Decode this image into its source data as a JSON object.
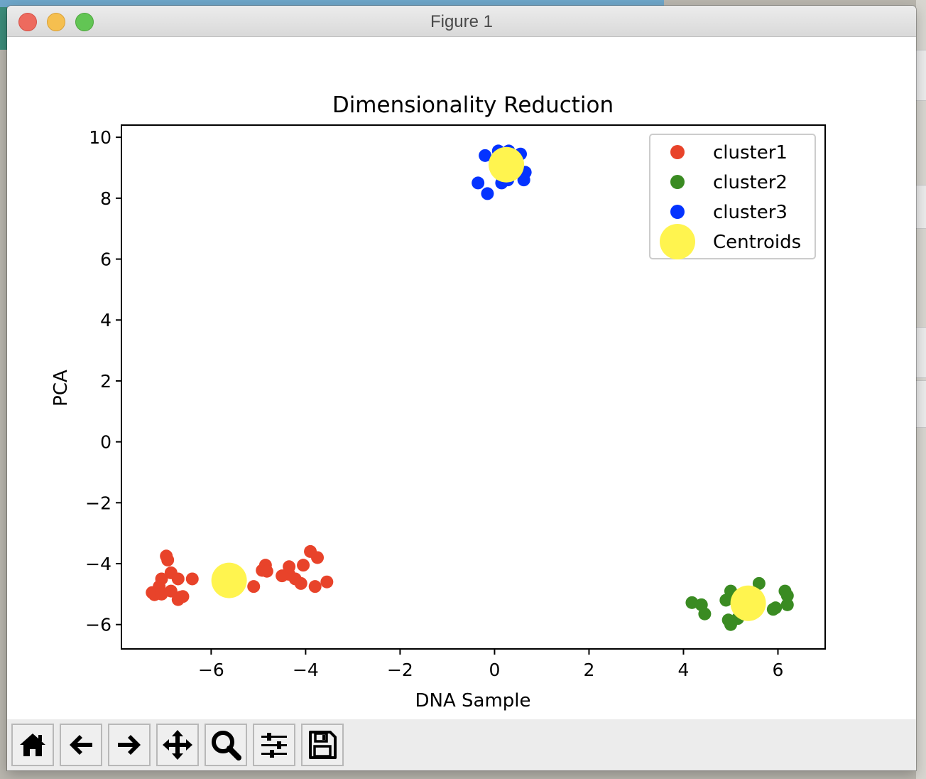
{
  "window": {
    "title": "Figure 1"
  },
  "toolbar": {
    "buttons": [
      {
        "name": "home",
        "icon": "home-icon"
      },
      {
        "name": "back",
        "icon": "arrow-left-icon"
      },
      {
        "name": "forward",
        "icon": "arrow-right-icon"
      },
      {
        "name": "pan",
        "icon": "move-icon"
      },
      {
        "name": "zoom",
        "icon": "search-icon"
      },
      {
        "name": "configure-subplots",
        "icon": "sliders-icon"
      },
      {
        "name": "save",
        "icon": "floppy-disk-icon"
      }
    ]
  },
  "chart_data": {
    "type": "scatter",
    "title": "Dimensionality Reduction",
    "xlabel": "DNA Sample",
    "ylabel": "PCA",
    "xlim": [
      -7.9,
      7.0
    ],
    "ylim": [
      -6.8,
      10.4
    ],
    "xticks": [
      -6,
      -4,
      -2,
      0,
      2,
      4,
      6
    ],
    "yticks": [
      -6,
      -4,
      -2,
      0,
      2,
      4,
      6,
      8,
      10
    ],
    "grid": false,
    "legend_position": "top-right",
    "series": [
      {
        "name": "cluster1",
        "color": "#e8432a",
        "points": [
          [
            -6.95,
            -3.75
          ],
          [
            -6.92,
            -3.88
          ],
          [
            -6.85,
            -4.3
          ],
          [
            -7.05,
            -4.5
          ],
          [
            -6.7,
            -4.5
          ],
          [
            -6.4,
            -4.5
          ],
          [
            -7.1,
            -4.75
          ],
          [
            -7.25,
            -4.95
          ],
          [
            -7.2,
            -5.02
          ],
          [
            -7.05,
            -5.0
          ],
          [
            -6.85,
            -4.9
          ],
          [
            -6.65,
            -5.1
          ],
          [
            -6.7,
            -5.18
          ],
          [
            -6.6,
            -5.08
          ],
          [
            -5.1,
            -4.75
          ],
          [
            -4.92,
            -4.22
          ],
          [
            -4.85,
            -4.05
          ],
          [
            -4.82,
            -4.25
          ],
          [
            -4.5,
            -4.4
          ],
          [
            -4.35,
            -4.35
          ],
          [
            -4.35,
            -4.1
          ],
          [
            -4.22,
            -4.5
          ],
          [
            -4.1,
            -4.65
          ],
          [
            -4.05,
            -4.05
          ],
          [
            -3.9,
            -3.6
          ],
          [
            -3.75,
            -3.8
          ],
          [
            -3.8,
            -4.75
          ],
          [
            -3.55,
            -4.6
          ]
        ]
      },
      {
        "name": "cluster2",
        "color": "#3a8b22",
        "points": [
          [
            4.18,
            -5.28
          ],
          [
            4.38,
            -5.35
          ],
          [
            4.45,
            -5.65
          ],
          [
            4.9,
            -5.2
          ],
          [
            4.95,
            -5.85
          ],
          [
            5.0,
            -6.0
          ],
          [
            5.15,
            -5.8
          ],
          [
            5.0,
            -4.9
          ],
          [
            5.2,
            -5.1
          ],
          [
            5.4,
            -5.2
          ],
          [
            5.6,
            -4.65
          ],
          [
            5.95,
            -5.45
          ],
          [
            5.9,
            -5.5
          ],
          [
            6.15,
            -4.9
          ],
          [
            6.2,
            -5.05
          ],
          [
            6.2,
            -5.35
          ]
        ]
      },
      {
        "name": "cluster3",
        "color": "#0433ff",
        "points": [
          [
            -0.35,
            8.5
          ],
          [
            -0.15,
            8.15
          ],
          [
            -0.2,
            9.4
          ],
          [
            0.08,
            9.55
          ],
          [
            0.3,
            9.55
          ],
          [
            0.55,
            9.45
          ],
          [
            0.65,
            8.85
          ],
          [
            0.62,
            8.6
          ],
          [
            0.15,
            8.5
          ],
          [
            0.28,
            8.6
          ]
        ]
      },
      {
        "name": "Centroids",
        "color": "#fff44f",
        "points": [
          [
            -5.62,
            -4.55
          ],
          [
            5.37,
            -5.3
          ],
          [
            0.25,
            9.1
          ]
        ]
      }
    ]
  }
}
